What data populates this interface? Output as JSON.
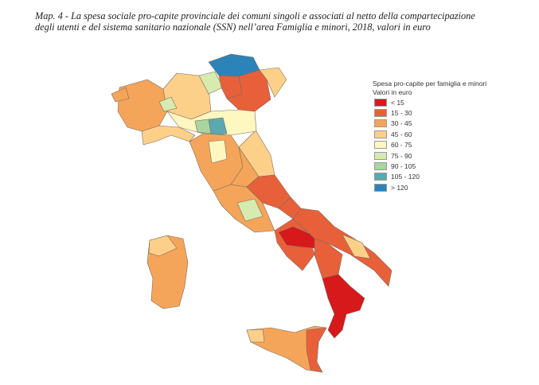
{
  "title": {
    "line1": "Map. 4 - La spesa sociale pro-capite provinciale dei comuni singoli e associati al netto della compartecipazione",
    "line2": "degli utenti e del sistema sanitario nazionale (SSN) nell’area Famiglia e minori, 2018, valori in euro"
  },
  "legend": {
    "title": "Spesa pro-capite per famiglia e minori",
    "subtitle": "Valori in euro",
    "items": [
      {
        "label": "< 15",
        "color": "#d7191c"
      },
      {
        "label": "15 - 30",
        "color": "#e8603a"
      },
      {
        "label": "30 - 45",
        "color": "#f5a55a"
      },
      {
        "label": "45 - 60",
        "color": "#fdd08a"
      },
      {
        "label": "60 - 75",
        "color": "#fff6c0"
      },
      {
        "label": "75 - 90",
        "color": "#d7eab0"
      },
      {
        "label": "90 - 105",
        "color": "#a8d5a0"
      },
      {
        "label": "105 - 120",
        "color": "#5aa8b0"
      },
      {
        "label": "> 120",
        "color": "#2b83ba"
      }
    ]
  }
}
